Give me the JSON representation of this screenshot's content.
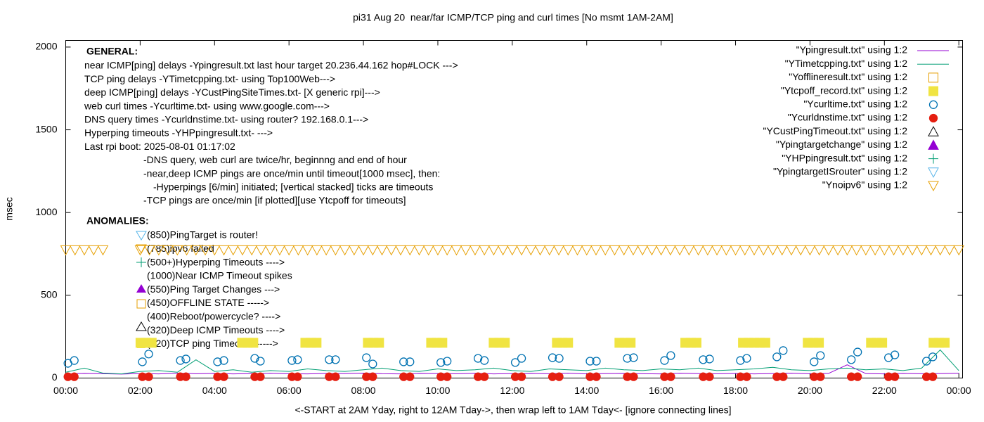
{
  "chart_data": {
    "type": "scatter",
    "title": "pi31 Aug 20  near/far ICMP/TCP ping and curl times [No msmt 1AM-2AM]",
    "xlabel": "<-START at 2AM Yday, right to 12AM Tday->, then wrap left to 1AM Tday<- [ignore connecting lines]",
    "ylabel": "msec",
    "xlim": [
      0,
      24.1
    ],
    "ylim": [
      0,
      2040
    ],
    "xticks": [
      {
        "value": 0,
        "label": "00:00"
      },
      {
        "value": 2,
        "label": "02:00"
      },
      {
        "value": 4,
        "label": "04:00"
      },
      {
        "value": 6,
        "label": "06:00"
      },
      {
        "value": 8,
        "label": "08:00"
      },
      {
        "value": 10,
        "label": "10:00"
      },
      {
        "value": 12,
        "label": "12:00"
      },
      {
        "value": 14,
        "label": "14:00"
      },
      {
        "value": 16,
        "label": "16:00"
      },
      {
        "value": 18,
        "label": "18:00"
      },
      {
        "value": 20,
        "label": "20:00"
      },
      {
        "value": 22,
        "label": "22:00"
      },
      {
        "value": 24,
        "label": "00:00"
      }
    ],
    "yticks": [
      0,
      500,
      1000,
      1500,
      2000
    ],
    "legend": "top-right",
    "annotations": {
      "general_title": "GENERAL:",
      "general": [
        "near ICMP[ping] delays -Ypingresult.txt last hour target 20.236.44.162 hop#LOCK --->",
        "TCP ping delays -YTimetcpping.txt- using Top100Web--->",
        "deep ICMP[ping] delays -YCustPingSiteTimes.txt- [X generic rpi]--->",
        "web curl times -Ycurltime.txt- using www.google.com--->",
        "DNS query times -Ycurldnstime.txt- using router? 192.168.0.1--->",
        "Hyperping timeouts -YHPpingresult.txt- --->",
        "Last rpi boot: 2025-08-01 01:17:02",
        "-DNS query, web curl are twice/hr, beginnng and end of hour",
        "-near,deep ICMP pings are once/min until timeout[1000 msec], then:",
        "-Hyperpings [6/min] initiated; [vertical stacked] ticks are timeouts",
        "-TCP pings are once/min [if plotted][use Ytcpoff for timeouts]"
      ],
      "anomalies_title": "ANOMALIES:",
      "anomalies": [
        "(850)PingTarget is router!",
        "(785)ipv6 failed",
        "(500+)Hyperping Timeouts ---->",
        "(1000)Near ICMP Timeout spikes",
        "(550)Ping Target Changes --->",
        "(450)OFFLINE STATE ----->",
        "(400)Reboot/powercycle? ---->",
        "(320)Deep ICMP Timeouts ---->",
        "(220)TCP ping Timeouts ----->"
      ]
    },
    "series": [
      {
        "name": "\"Ypingresult.txt\" using 1:2",
        "color": "#9400d3",
        "marker": "line",
        "x": [
          0,
          0.5,
          1,
          1.5,
          2,
          2.5,
          3,
          3.5,
          4,
          4.5,
          5,
          5.5,
          6,
          6.5,
          7,
          7.5,
          8,
          8.5,
          9,
          9.5,
          10,
          10.5,
          11,
          11.5,
          12,
          12.5,
          13,
          13.5,
          14,
          14.5,
          15,
          15.5,
          16,
          16.5,
          17,
          17.5,
          18,
          18.5,
          19,
          19.5,
          20,
          20.5,
          21,
          21.5,
          22,
          22.5,
          23,
          23.5,
          24
        ],
        "values": [
          25,
          28,
          26,
          24,
          27,
          25,
          30,
          26,
          28,
          25,
          27,
          29,
          26,
          25,
          28,
          27,
          30,
          26,
          25,
          28,
          27,
          26,
          29,
          25,
          27,
          28,
          26,
          30,
          25,
          27,
          28,
          26,
          25,
          29,
          27,
          26,
          28,
          25,
          27,
          30,
          26,
          28,
          80,
          27,
          25,
          28,
          26,
          27,
          29
        ]
      },
      {
        "name": "\"YTimetcpping.txt\" using 1:2",
        "color": "#009e73",
        "marker": "line",
        "x": [
          0,
          0.5,
          1,
          1.5,
          2,
          2.5,
          3,
          3.5,
          4,
          4.5,
          5,
          5.5,
          6,
          6.5,
          7,
          7.5,
          8,
          8.5,
          9,
          9.5,
          10,
          10.5,
          11,
          11.5,
          12,
          12.5,
          13,
          13.5,
          14,
          14.5,
          15,
          15.5,
          16,
          16.5,
          17,
          17.5,
          18,
          18.5,
          19,
          19.5,
          20,
          20.5,
          21,
          21.5,
          22,
          22.5,
          23,
          23.5,
          24
        ],
        "values": [
          35,
          60,
          30,
          25,
          40,
          45,
          35,
          110,
          40,
          50,
          35,
          45,
          40,
          55,
          45,
          40,
          50,
          60,
          45,
          40,
          55,
          45,
          50,
          60,
          45,
          40,
          55,
          50,
          45,
          60,
          50,
          45,
          55,
          50,
          60,
          45,
          50,
          55,
          65,
          50,
          45,
          55,
          60,
          50,
          55,
          45,
          60,
          170,
          45
        ]
      },
      {
        "name": "\"Yofflineresult.txt\" using 1:2",
        "color": "#e69f00",
        "marker": "square-open",
        "x": [],
        "values": []
      },
      {
        "name": "\"Ytcpoff_record.txt\" using 1:2",
        "color": "#f0e442",
        "marker": "square",
        "x": [
          2.01,
          2.16,
          2.31,
          4.74,
          4.89,
          5.04,
          6.44,
          6.59,
          6.74,
          8.12,
          8.27,
          8.42,
          9.82,
          9.97,
          10.12,
          11.5,
          11.65,
          11.8,
          13.2,
          13.35,
          13.5,
          14.88,
          15.03,
          15.18,
          16.65,
          16.8,
          16.95,
          18.2,
          18.35,
          18.5,
          18.65,
          18.8,
          19.94,
          20.09,
          20.24,
          21.64,
          21.79,
          21.94,
          23.32,
          23.47,
          23.62
        ],
        "values": [
          213,
          213,
          213,
          213,
          213,
          213,
          213,
          213,
          213,
          213,
          213,
          213,
          213,
          213,
          213,
          213,
          213,
          213,
          213,
          213,
          213,
          213,
          213,
          213,
          213,
          213,
          213,
          213,
          213,
          213,
          213,
          213,
          213,
          213,
          213,
          213,
          213,
          213,
          213,
          213,
          213
        ]
      },
      {
        "name": "\"Ycurltime.txt\" using 1:2",
        "color": "#0072b2",
        "marker": "circle-open",
        "x": [
          0.06,
          0.23,
          2.06,
          2.23,
          3.08,
          3.23,
          4.08,
          4.25,
          5.08,
          5.23,
          6.08,
          6.23,
          7.08,
          7.25,
          8.08,
          8.25,
          9.08,
          9.25,
          10.08,
          10.25,
          11.08,
          11.25,
          12.08,
          12.25,
          13.08,
          13.26,
          14.09,
          14.26,
          15.09,
          15.26,
          16.09,
          16.26,
          17.13,
          17.3,
          18.13,
          18.3,
          19.11,
          19.28,
          20.11,
          20.28,
          21.11,
          21.28,
          22.11,
          22.28,
          23.13,
          23.3
        ],
        "values": [
          89,
          106,
          98,
          145,
          106,
          115,
          98,
          106,
          119,
          102,
          106,
          111,
          111,
          111,
          123,
          85,
          98,
          98,
          94,
          102,
          119,
          106,
          94,
          119,
          123,
          119,
          102,
          102,
          119,
          123,
          106,
          136,
          111,
          115,
          106,
          119,
          128,
          166,
          98,
          136,
          111,
          157,
          123,
          140,
          102,
          128
        ]
      },
      {
        "name": "\"Ycurldnstime.txt\" using 1:2",
        "color": "#e51e10",
        "marker": "circle",
        "x": [
          0.06,
          0.23,
          2.06,
          2.23,
          3.08,
          3.23,
          4.08,
          4.25,
          5.08,
          5.23,
          6.08,
          6.23,
          7.08,
          7.25,
          8.08,
          8.25,
          9.08,
          9.25,
          10.08,
          10.25,
          11.08,
          11.25,
          12.08,
          12.25,
          13.08,
          13.26,
          14.09,
          14.26,
          15.09,
          15.26,
          16.09,
          16.26,
          17.13,
          17.3,
          18.13,
          18.3,
          19.11,
          19.28,
          20.11,
          20.28,
          21.11,
          21.28,
          22.11,
          22.28,
          23.13,
          23.3
        ],
        "values": [
          8,
          8,
          8,
          8,
          8,
          8,
          8,
          8,
          8,
          8,
          8,
          8,
          8,
          8,
          8,
          8,
          8,
          8,
          8,
          8,
          8,
          8,
          8,
          8,
          8,
          8,
          8,
          8,
          8,
          8,
          8,
          8,
          8,
          8,
          8,
          8,
          8,
          8,
          8,
          8,
          8,
          8,
          8,
          8,
          8,
          8
        ]
      },
      {
        "name": "\"YCustPingTimeout.txt\" using 1:2",
        "color": "#000000",
        "marker": "triangle-open",
        "x": [],
        "values": []
      },
      {
        "name": "\"Ypingtargetchange\" using 1:2",
        "color": "#9400d3",
        "marker": "triangle",
        "x": [],
        "values": []
      },
      {
        "name": "\"YHPpingresult.txt\" using 1:2",
        "color": "#009e73",
        "marker": "plus",
        "x": [],
        "values": []
      },
      {
        "name": "\"YpingtargetISrouter\" using 1:2",
        "color": "#56b4e9",
        "marker": "triangle-down-open",
        "x": [],
        "values": []
      },
      {
        "name": "\"Ynoipv6\" using 1:2",
        "color": "#e69f00",
        "marker": "triangle-down-open",
        "x": [
          0,
          0.25,
          0.5,
          0.75,
          1,
          2,
          2.25,
          2.5,
          2.75,
          3,
          3.25,
          3.5,
          3.75,
          4,
          4.25,
          4.5,
          4.75,
          5,
          5.25,
          5.5,
          5.75,
          6,
          6.25,
          6.5,
          6.75,
          7,
          7.25,
          7.5,
          7.75,
          8,
          8.25,
          8.5,
          8.75,
          9,
          9.25,
          9.5,
          9.75,
          10,
          10.25,
          10.5,
          10.75,
          11,
          11.25,
          11.5,
          11.75,
          12,
          12.25,
          12.5,
          12.75,
          13,
          13.25,
          13.5,
          13.75,
          14,
          14.25,
          14.5,
          14.75,
          15,
          15.25,
          15.5,
          15.75,
          16,
          16.25,
          16.5,
          16.75,
          17,
          17.25,
          17.5,
          17.75,
          18,
          18.25,
          18.5,
          18.75,
          19,
          19.25,
          19.5,
          19.75,
          20,
          20.25,
          20.5,
          20.75,
          21,
          21.25,
          21.5,
          21.75,
          22,
          22.25,
          22.5,
          22.75,
          23,
          23.25,
          23.5,
          23.75,
          24
        ],
        "values": [
          774,
          774,
          774,
          774,
          774,
          774,
          774,
          774,
          774,
          774,
          774,
          774,
          774,
          774,
          774,
          774,
          774,
          774,
          774,
          774,
          774,
          774,
          774,
          774,
          774,
          774,
          774,
          774,
          774,
          774,
          774,
          774,
          774,
          774,
          774,
          774,
          774,
          774,
          774,
          774,
          774,
          774,
          774,
          774,
          774,
          774,
          774,
          774,
          774,
          774,
          774,
          774,
          774,
          774,
          774,
          774,
          774,
          774,
          774,
          774,
          774,
          774,
          774,
          774,
          774,
          774,
          774,
          774,
          774,
          774,
          774,
          774,
          774,
          774,
          774,
          774,
          774,
          774,
          774,
          774,
          774,
          774,
          774,
          774,
          774,
          774,
          774,
          774,
          774,
          774,
          774,
          774,
          774,
          774
        ]
      }
    ]
  }
}
